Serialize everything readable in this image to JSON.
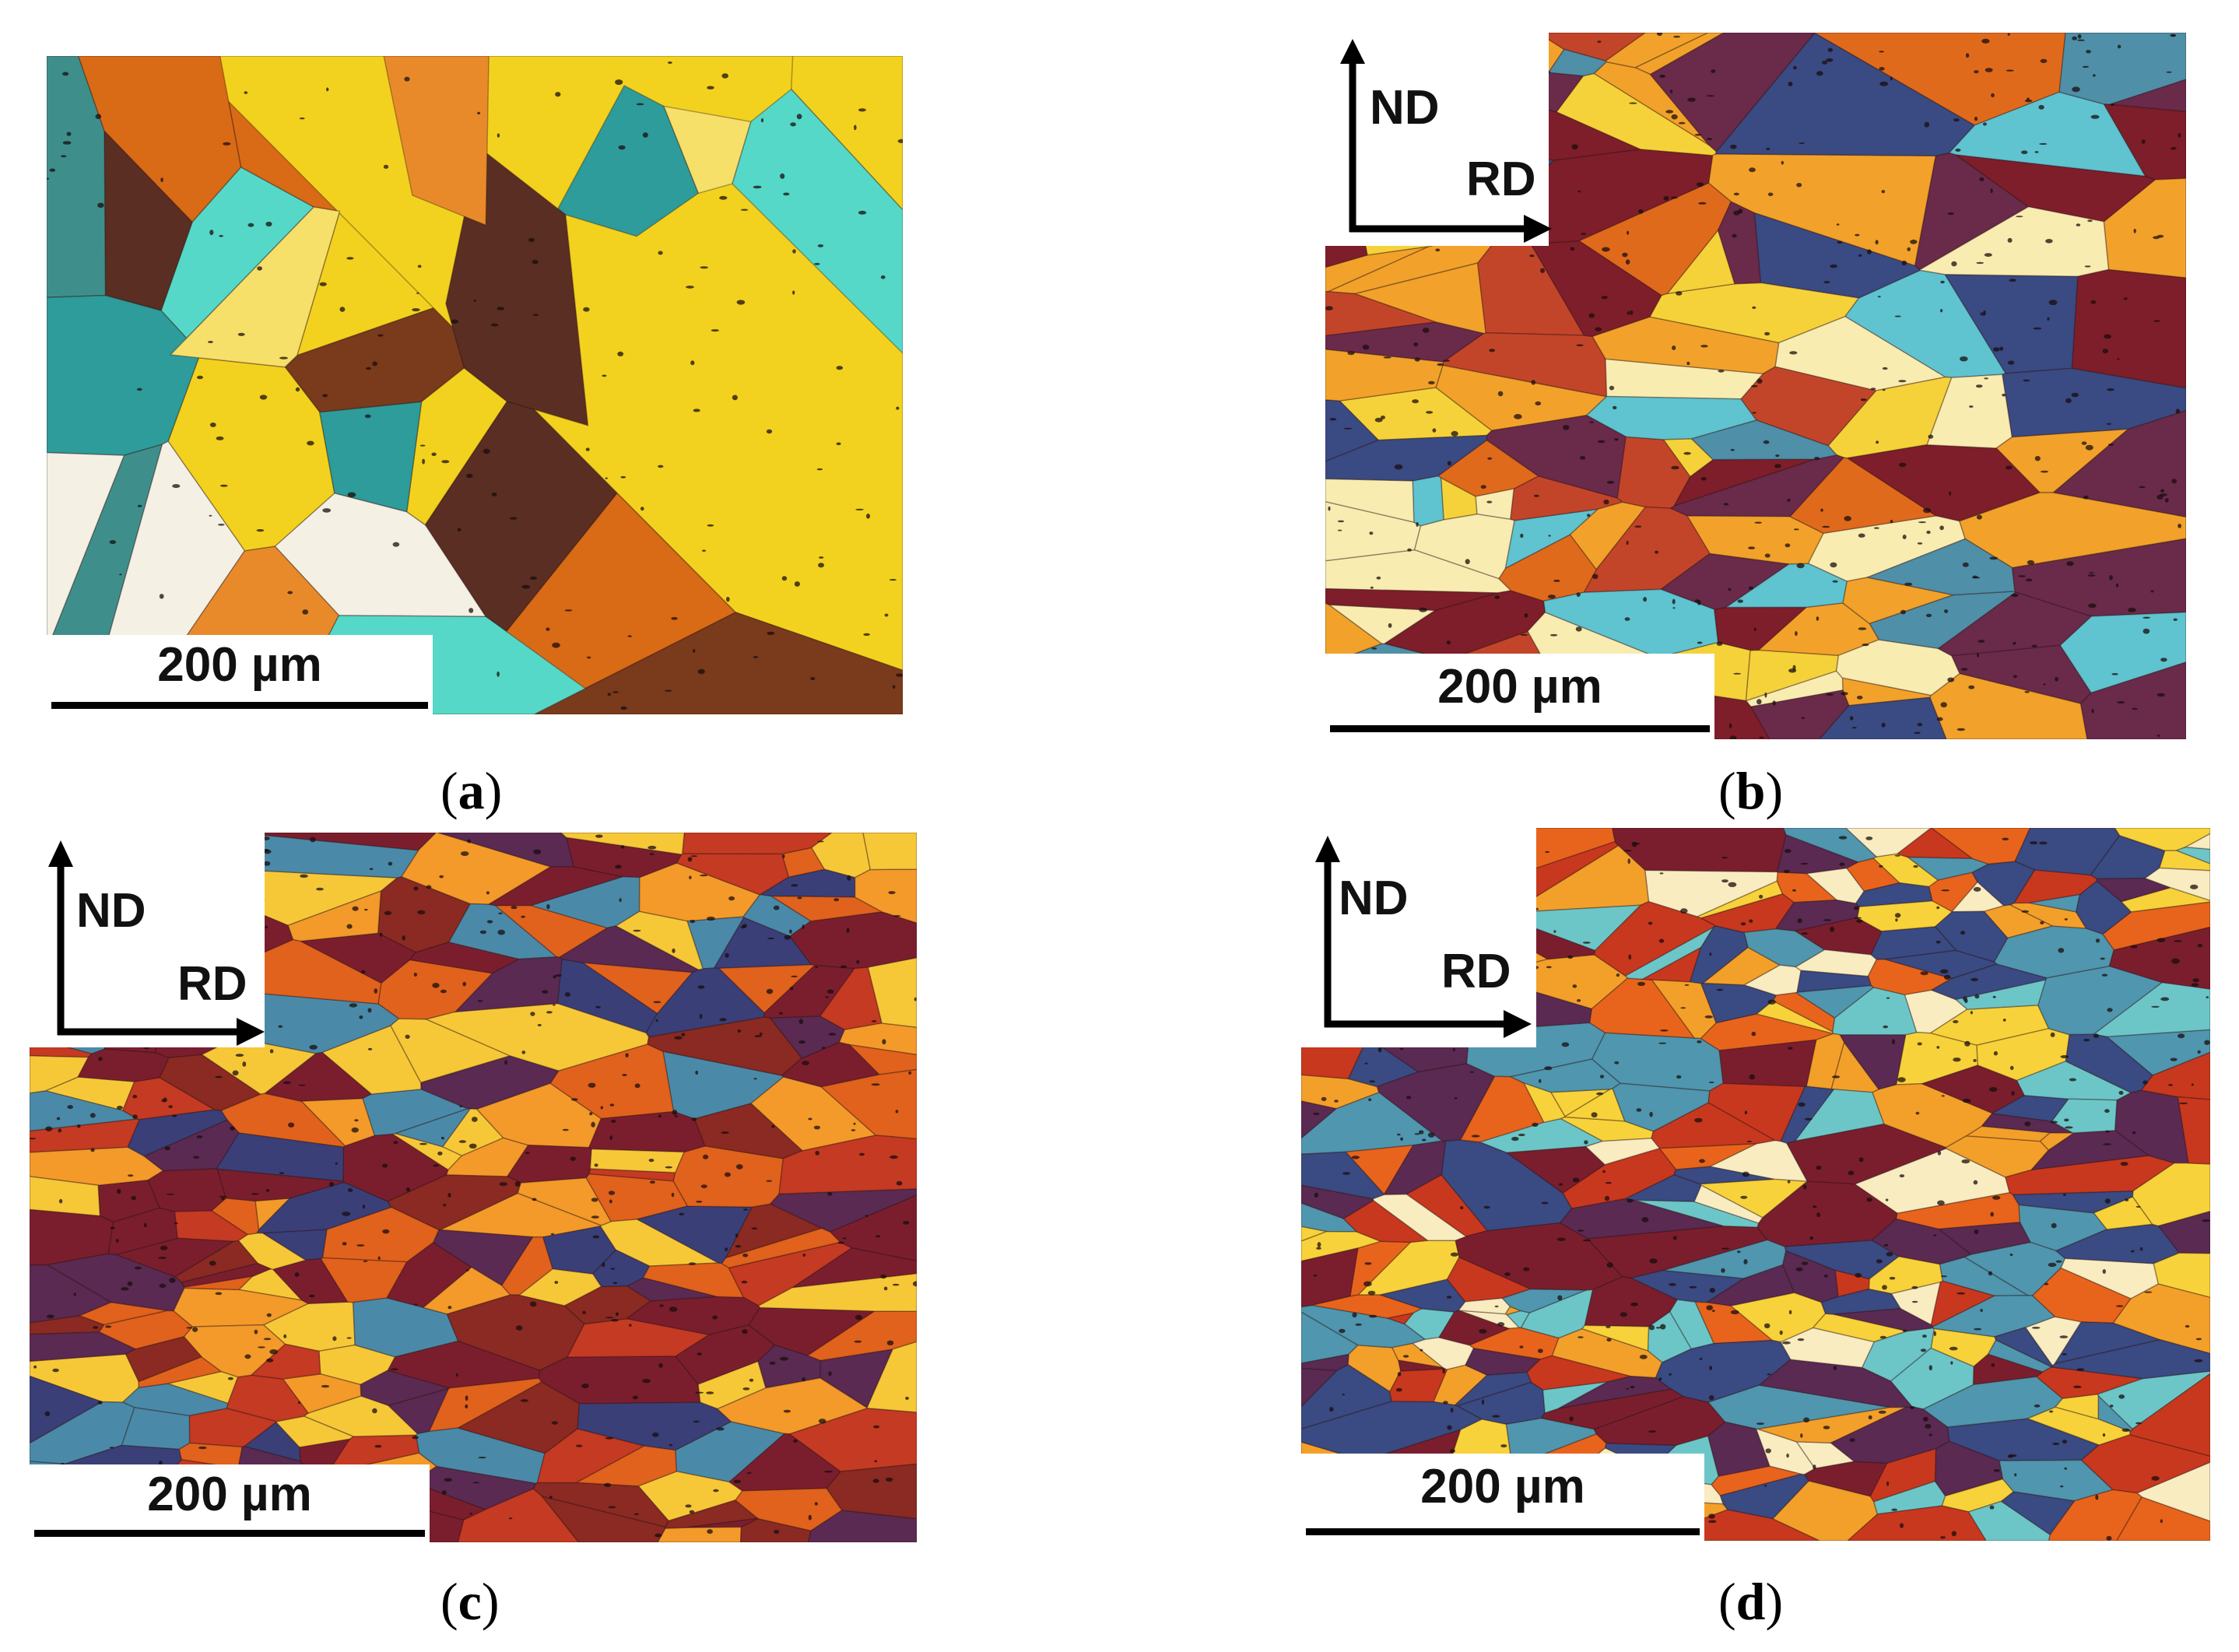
{
  "figure": {
    "panels": [
      {
        "id": "a",
        "caption_letter": "a",
        "scale_bar_label": "200 µm",
        "axis_labels": null,
        "grain_palette": [
          "#7a3a1c",
          "#5a2e22",
          "#d96a16",
          "#f2d21e",
          "#f6e06a",
          "#3e8f8c",
          "#2d9c9a",
          "#55d8c8",
          "#e98a2a",
          "#f4f0e4"
        ]
      },
      {
        "id": "b",
        "caption_letter": "b",
        "scale_bar_label": "200 µm",
        "axis_labels": {
          "vertical": "ND",
          "horizontal": "RD"
        },
        "grain_palette": [
          "#7e1e2a",
          "#6a2a4a",
          "#3a4a82",
          "#4f8fa8",
          "#5fc3d0",
          "#e06a1c",
          "#f2a22a",
          "#f6d23a",
          "#f8ecb0",
          "#c2452a"
        ]
      },
      {
        "id": "c",
        "caption_letter": "c",
        "scale_bar_label": "200 µm",
        "axis_labels": {
          "vertical": "ND",
          "horizontal": "RD"
        },
        "grain_palette": [
          "#7a1e2e",
          "#5a2a52",
          "#3a3f78",
          "#4a8aa8",
          "#c43a22",
          "#e0621c",
          "#f39a2a",
          "#f6c838",
          "#8a2a22"
        ]
      },
      {
        "id": "d",
        "caption_letter": "d",
        "scale_bar_label": "200 µm",
        "axis_labels": {
          "vertical": "ND",
          "horizontal": "RD"
        },
        "grain_palette": [
          "#7a1e2e",
          "#5a2a52",
          "#3a4a82",
          "#4f96ae",
          "#6cc6c8",
          "#c8381e",
          "#e8641c",
          "#f3a02a",
          "#f7d23a",
          "#f8ecc0"
        ]
      }
    ]
  }
}
